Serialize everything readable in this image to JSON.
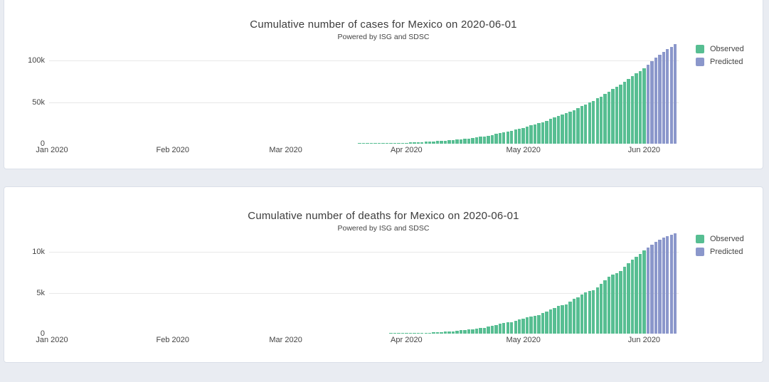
{
  "page": {
    "background": "#e9ecf2",
    "card_background": "#ffffff",
    "card_border": "#dbe0e9",
    "observed_color": "#57be92",
    "predicted_color": "#8b97cb"
  },
  "chart_data": [
    {
      "type": "bar",
      "title": "Cumulative number of cases for Mexico on 2020-06-01",
      "subtitle": "Powered by ISG and SDSC",
      "xlabel": "",
      "ylabel": "",
      "legend_position": "right",
      "grid": "horizontal",
      "start_date": "2020-01-01",
      "x_tick_labels": [
        "Jan 2020",
        "Feb 2020",
        "Mar 2020",
        "Apr 2020",
        "May 2020",
        "Jun 2020"
      ],
      "x_tick_day_offsets": [
        0,
        31,
        60,
        91,
        121,
        152
      ],
      "y_ticks": [
        {
          "value": 0,
          "label": "0"
        },
        {
          "value": 50000,
          "label": "50k"
        },
        {
          "value": 100000,
          "label": "100k"
        }
      ],
      "y_range": [
        0,
        120000
      ],
      "legend": [
        {
          "name": "Observed",
          "color": "#57be92"
        },
        {
          "name": "Predicted",
          "color": "#8b97cb"
        }
      ],
      "series": [
        {
          "name": "Observed",
          "color": "#57be92",
          "start_date": "2020-03-01",
          "start_day_offset": 60,
          "values": [
            5,
            5,
            5,
            5,
            5,
            6,
            6,
            7,
            7,
            7,
            8,
            12,
            12,
            26,
            41,
            53,
            82,
            93,
            118,
            164,
            203,
            251,
            316,
            367,
            405,
            475,
            585,
            717,
            848,
            993,
            1094,
            1215,
            1378,
            1510,
            1688,
            1890,
            2143,
            2439,
            2785,
            3181,
            3441,
            3844,
            4219,
            4661,
            5014,
            5399,
            5847,
            6297,
            6875,
            7497,
            8261,
            8772,
            9501,
            10544,
            11633,
            12872,
            13842,
            14677,
            15529,
            16752,
            17799,
            19224,
            20739,
            22088,
            23471,
            24905,
            26025,
            27634,
            29616,
            31522,
            33460,
            35022,
            36327,
            38324,
            40186,
            42595,
            45032,
            47144,
            49219,
            51633,
            54346,
            56594,
            59567,
            62527,
            65856,
            68620,
            71105,
            74560,
            78023,
            81400,
            84627,
            87512,
            90664
          ]
        },
        {
          "name": "Predicted",
          "color": "#8b97cb",
          "start_date": "2020-06-02",
          "start_day_offset": 153,
          "values": [
            95000,
            99500,
            103500,
            107000,
            110500,
            113500,
            116500,
            119500
          ]
        }
      ]
    },
    {
      "type": "bar",
      "title": "Cumulative number of deaths for Mexico on 2020-06-01",
      "subtitle": "Powered by ISG and SDSC",
      "xlabel": "",
      "ylabel": "",
      "legend_position": "right",
      "grid": "horizontal",
      "start_date": "2020-01-01",
      "x_tick_labels": [
        "Jan 2020",
        "Feb 2020",
        "Mar 2020",
        "Apr 2020",
        "May 2020",
        "Jun 2020"
      ],
      "x_tick_day_offsets": [
        0,
        31,
        60,
        91,
        121,
        152
      ],
      "y_ticks": [
        {
          "value": 0,
          "label": "0"
        },
        {
          "value": 5000,
          "label": "5k"
        },
        {
          "value": 10000,
          "label": "10k"
        }
      ],
      "y_range": [
        0,
        12500
      ],
      "legend": [
        {
          "name": "Observed",
          "color": "#57be92"
        },
        {
          "name": "Predicted",
          "color": "#8b97cb"
        }
      ],
      "series": [
        {
          "name": "Observed",
          "color": "#57be92",
          "start_date": "2020-03-18",
          "start_day_offset": 77,
          "values": [
            1,
            1,
            2,
            3,
            4,
            5,
            6,
            8,
            10,
            12,
            16,
            20,
            25,
            28,
            29,
            37,
            50,
            60,
            79,
            94,
            125,
            141,
            174,
            194,
            233,
            273,
            296,
            332,
            406,
            449,
            486,
            546,
            650,
            686,
            712,
            857,
            970,
            1069,
            1221,
            1305,
            1351,
            1434,
            1569,
            1732,
            1859,
            1972,
            2061,
            2154,
            2271,
            2507,
            2704,
            2961,
            3160,
            3353,
            3465,
            3573,
            3926,
            4220,
            4477,
            4767,
            5045,
            5177,
            5332,
            5666,
            6090,
            6510,
            6989,
            7179,
            7394,
            7633,
            8134,
            8597,
            9044,
            9415,
            9779,
            10167
          ]
        },
        {
          "name": "Predicted",
          "color": "#8b97cb",
          "start_date": "2020-06-02",
          "start_day_offset": 153,
          "values": [
            10550,
            10900,
            11200,
            11450,
            11700,
            11900,
            12100,
            12300
          ]
        }
      ]
    }
  ]
}
